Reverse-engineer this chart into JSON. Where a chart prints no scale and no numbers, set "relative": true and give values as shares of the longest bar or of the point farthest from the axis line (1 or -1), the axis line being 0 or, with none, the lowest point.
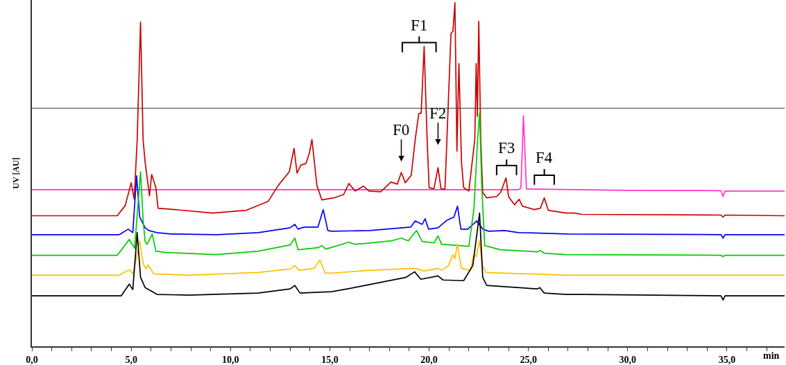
{
  "chart_data": {
    "type": "line",
    "relative": true,
    "xlabel": "min",
    "ylabel": "UV [AU]",
    "tick_labels": "x",
    "xlim": [
      0,
      37.9
    ],
    "xticks": [
      {
        "value": 0,
        "label": "0,0"
      },
      {
        "value": 1,
        "label": null
      },
      {
        "value": 2,
        "label": null
      },
      {
        "value": 3,
        "label": null
      },
      {
        "value": 4,
        "label": null
      },
      {
        "value": 5,
        "label": "5,0"
      },
      {
        "value": 6,
        "label": null
      },
      {
        "value": 7,
        "label": null
      },
      {
        "value": 8,
        "label": null
      },
      {
        "value": 9,
        "label": null
      },
      {
        "value": 10,
        "label": "10,0"
      },
      {
        "value": 11,
        "label": null
      },
      {
        "value": 12,
        "label": null
      },
      {
        "value": 13,
        "label": null
      },
      {
        "value": 14,
        "label": null
      },
      {
        "value": 15,
        "label": "15,0"
      },
      {
        "value": 16,
        "label": null
      },
      {
        "value": 17,
        "label": null
      },
      {
        "value": 18,
        "label": null
      },
      {
        "value": 19,
        "label": null
      },
      {
        "value": 20,
        "label": "20,0"
      },
      {
        "value": 21,
        "label": null
      },
      {
        "value": 22,
        "label": null
      },
      {
        "value": 23,
        "label": null
      },
      {
        "value": 24,
        "label": null
      },
      {
        "value": 25,
        "label": "25,0"
      },
      {
        "value": 26,
        "label": null
      },
      {
        "value": 27,
        "label": null
      },
      {
        "value": 28,
        "label": null
      },
      {
        "value": 29,
        "label": null
      },
      {
        "value": 30,
        "label": "30,0"
      },
      {
        "value": 31,
        "label": null
      },
      {
        "value": 32,
        "label": null
      },
      {
        "value": 33,
        "label": null
      },
      {
        "value": 34,
        "label": null
      },
      {
        "value": 35,
        "label": "35,0"
      },
      {
        "value": 36,
        "label": null
      },
      {
        "value": 37,
        "label": null
      }
    ],
    "ref_lines": [
      {
        "axis": "y",
        "value": 0.693,
        "color": "#333333"
      }
    ],
    "annotations": [
      {
        "text": "F0",
        "x": 18.6,
        "y": 0.506
      },
      {
        "text": "F1",
        "x": 19.75,
        "y": 0.873
      },
      {
        "text": "F2",
        "x": 20.45,
        "y": 0.52
      },
      {
        "text": "F3",
        "x": 23.87,
        "y": 0.49
      },
      {
        "text": "F4",
        "x": 25.8,
        "y": 0.432
      }
    ],
    "series": [
      {
        "color": "#ff33cc",
        "x": [
          0,
          24.5,
          24.62,
          24.75,
          24.9,
          30,
          34.7,
          34.8,
          34.9,
          37.9
        ],
        "values": [
          0.456,
          0.456,
          0.46,
          0.671,
          0.458,
          0.454,
          0.453,
          0.436,
          0.452,
          0.452
        ]
      },
      {
        "color": "#cc0000",
        "x": [
          0,
          4.3,
          4.7,
          5.0,
          5.15,
          5.3,
          5.47,
          5.6,
          5.7,
          5.92,
          6.03,
          6.24,
          6.35,
          7.2,
          9.1,
          10.8,
          11.9,
          12.4,
          12.96,
          13.2,
          13.35,
          13.55,
          13.8,
          13.97,
          14.1,
          14.35,
          14.6,
          15.2,
          15.7,
          15.96,
          16.27,
          16.7,
          16.97,
          17.56,
          18.08,
          18.4,
          18.6,
          18.8,
          19.1,
          19.3,
          19.48,
          19.6,
          19.75,
          19.9,
          20.0,
          20.24,
          20.45,
          20.6,
          20.8,
          21.1,
          21.2,
          21.3,
          21.4,
          21.5,
          21.63,
          21.74,
          22.0,
          22.3,
          22.37,
          22.43,
          22.5,
          22.6,
          22.7,
          22.9,
          23.4,
          23.6,
          23.87,
          24.0,
          24.3,
          24.53,
          24.7,
          25.3,
          25.6,
          25.8,
          26.0,
          26.9,
          27.3,
          27.7,
          34.7,
          34.8,
          34.9,
          37.9
        ],
        "values": [
          0.38,
          0.38,
          0.41,
          0.476,
          0.428,
          0.6,
          0.944,
          0.6,
          0.536,
          0.438,
          0.5,
          0.462,
          0.402,
          0.398,
          0.388,
          0.396,
          0.422,
          0.468,
          0.508,
          0.576,
          0.504,
          0.528,
          0.532,
          0.562,
          0.602,
          0.468,
          0.426,
          0.432,
          0.442,
          0.474,
          0.452,
          0.466,
          0.452,
          0.45,
          0.478,
          0.472,
          0.506,
          0.476,
          0.498,
          0.602,
          0.677,
          0.679,
          0.873,
          0.602,
          0.462,
          0.458,
          0.52,
          0.458,
          0.458,
          0.91,
          0.918,
          1.0,
          0.568,
          0.823,
          0.536,
          0.462,
          0.452,
          0.602,
          0.823,
          0.669,
          0.946,
          0.602,
          0.448,
          0.432,
          0.436,
          0.448,
          0.49,
          0.436,
          0.412,
          0.428,
          0.408,
          0.398,
          0.402,
          0.432,
          0.396,
          0.388,
          0.388,
          0.384,
          0.382,
          0.376,
          0.382,
          0.38
        ]
      },
      {
        "color": "#0000ff",
        "x": [
          0,
          4.4,
          4.85,
          5.08,
          5.27,
          5.43,
          5.7,
          5.89,
          6.3,
          7.0,
          9.3,
          11.4,
          13.0,
          13.24,
          13.4,
          13.7,
          14.4,
          14.67,
          14.9,
          15.1,
          17.0,
          19.07,
          19.3,
          19.65,
          19.8,
          19.97,
          20.45,
          20.9,
          21.25,
          21.43,
          21.6,
          21.95,
          22.4,
          22.7,
          23.0,
          23.8,
          24.5,
          27.0,
          34.7,
          34.8,
          34.9,
          37.9
        ],
        "values": [
          0.325,
          0.325,
          0.341,
          0.331,
          0.496,
          0.376,
          0.345,
          0.337,
          0.331,
          0.327,
          0.325,
          0.331,
          0.345,
          0.355,
          0.341,
          0.347,
          0.347,
          0.398,
          0.337,
          0.335,
          0.337,
          0.347,
          0.365,
          0.355,
          0.371,
          0.341,
          0.345,
          0.367,
          0.376,
          0.408,
          0.341,
          0.341,
          0.365,
          0.341,
          0.335,
          0.337,
          0.331,
          0.327,
          0.325,
          0.315,
          0.325,
          0.325
        ]
      },
      {
        "color": "#00cc00",
        "x": [
          0,
          4.3,
          4.9,
          5.17,
          5.47,
          5.6,
          5.7,
          5.8,
          6.06,
          6.24,
          6.76,
          9.3,
          11.4,
          13.0,
          13.24,
          13.4,
          14.4,
          14.6,
          14.8,
          15.96,
          16.27,
          16.75,
          18.1,
          18.6,
          18.95,
          19.37,
          19.65,
          20.24,
          20.45,
          20.63,
          22.0,
          22.26,
          22.44,
          22.54,
          22.65,
          22.8,
          23.6,
          25.47,
          25.57,
          25.8,
          26.9,
          34.7,
          34.8,
          34.9,
          37.9
        ],
        "values": [
          0.265,
          0.265,
          0.311,
          0.285,
          0.508,
          0.367,
          0.305,
          0.297,
          0.327,
          0.277,
          0.273,
          0.267,
          0.277,
          0.295,
          0.315,
          0.281,
          0.287,
          0.293,
          0.283,
          0.303,
          0.297,
          0.299,
          0.307,
          0.315,
          0.307,
          0.337,
          0.305,
          0.301,
          0.321,
          0.297,
          0.291,
          0.402,
          0.602,
          0.679,
          0.468,
          0.293,
          0.281,
          0.275,
          0.279,
          0.271,
          0.267,
          0.265,
          0.261,
          0.265,
          0.265
        ]
      },
      {
        "color": "#ffc000",
        "x": [
          0,
          4.4,
          4.9,
          5.1,
          5.43,
          5.6,
          5.75,
          5.85,
          6.13,
          7.9,
          11.4,
          13.0,
          13.24,
          13.45,
          14.2,
          14.5,
          14.77,
          15.1,
          16.97,
          19.3,
          19.75,
          20.45,
          20.63,
          20.98,
          21.2,
          21.3,
          21.42,
          21.63,
          22.09,
          22.23,
          22.37,
          22.54,
          22.68,
          22.86,
          26.9,
          37.9
        ],
        "values": [
          0.207,
          0.207,
          0.223,
          0.211,
          0.307,
          0.241,
          0.225,
          0.237,
          0.211,
          0.207,
          0.215,
          0.225,
          0.235,
          0.221,
          0.227,
          0.251,
          0.213,
          0.213,
          0.221,
          0.227,
          0.219,
          0.227,
          0.221,
          0.235,
          0.267,
          0.255,
          0.297,
          0.227,
          0.221,
          0.265,
          0.261,
          0.307,
          0.235,
          0.215,
          0.207,
          0.207
        ]
      },
      {
        "color": "#000000",
        "x": [
          0,
          4.5,
          4.9,
          5.08,
          5.3,
          5.47,
          5.7,
          5.95,
          6.3,
          7.9,
          11.4,
          13.0,
          13.24,
          13.5,
          15.1,
          16.6,
          18.85,
          19.27,
          19.58,
          20.45,
          20.7,
          21.74,
          22.2,
          22.54,
          22.7,
          22.9,
          25.47,
          25.57,
          25.8,
          26.9,
          27.8,
          34.7,
          34.8,
          34.9,
          37.9
        ],
        "values": [
          0.147,
          0.147,
          0.181,
          0.165,
          0.331,
          0.201,
          0.171,
          0.163,
          0.151,
          0.149,
          0.155,
          0.167,
          0.177,
          0.155,
          0.159,
          0.175,
          0.201,
          0.217,
          0.195,
          0.205,
          0.193,
          0.191,
          0.235,
          0.388,
          0.201,
          0.177,
          0.167,
          0.171,
          0.155,
          0.151,
          0.151,
          0.147,
          0.135,
          0.147,
          0.147
        ]
      }
    ]
  }
}
